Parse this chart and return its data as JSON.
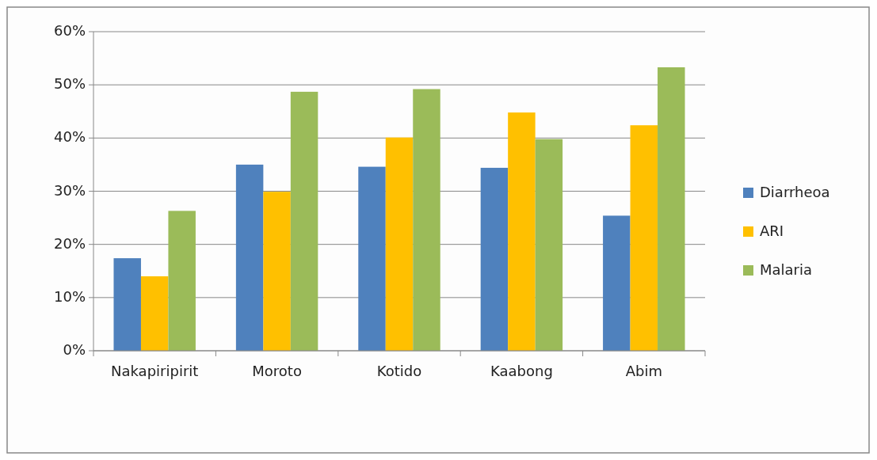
{
  "chart_data": {
    "type": "bar",
    "categories": [
      "Nakapiripirit",
      "Moroto",
      "Kotido",
      "Kaabong",
      "Abim"
    ],
    "series": [
      {
        "name": "Diarrheoa",
        "color": "#4f81bd",
        "values": [
          17.4,
          35.0,
          34.6,
          34.4,
          25.4
        ]
      },
      {
        "name": "ARI",
        "color": "#ffc000",
        "values": [
          14.0,
          29.9,
          40.1,
          44.8,
          42.4
        ]
      },
      {
        "name": "Malaria",
        "color": "#9bbb59",
        "values": [
          26.3,
          48.7,
          49.2,
          39.8,
          53.3
        ]
      }
    ],
    "ylim": [
      0,
      60
    ],
    "yticks": [
      {
        "value": 0,
        "label": "0%"
      },
      {
        "value": 10,
        "label": "10%"
      },
      {
        "value": 20,
        "label": "20%"
      },
      {
        "value": 30,
        "label": "30%"
      },
      {
        "value": 40,
        "label": "40%"
      },
      {
        "value": 50,
        "label": "50%"
      },
      {
        "value": 60,
        "label": "60%"
      }
    ],
    "grid": "y",
    "legend": "right"
  }
}
